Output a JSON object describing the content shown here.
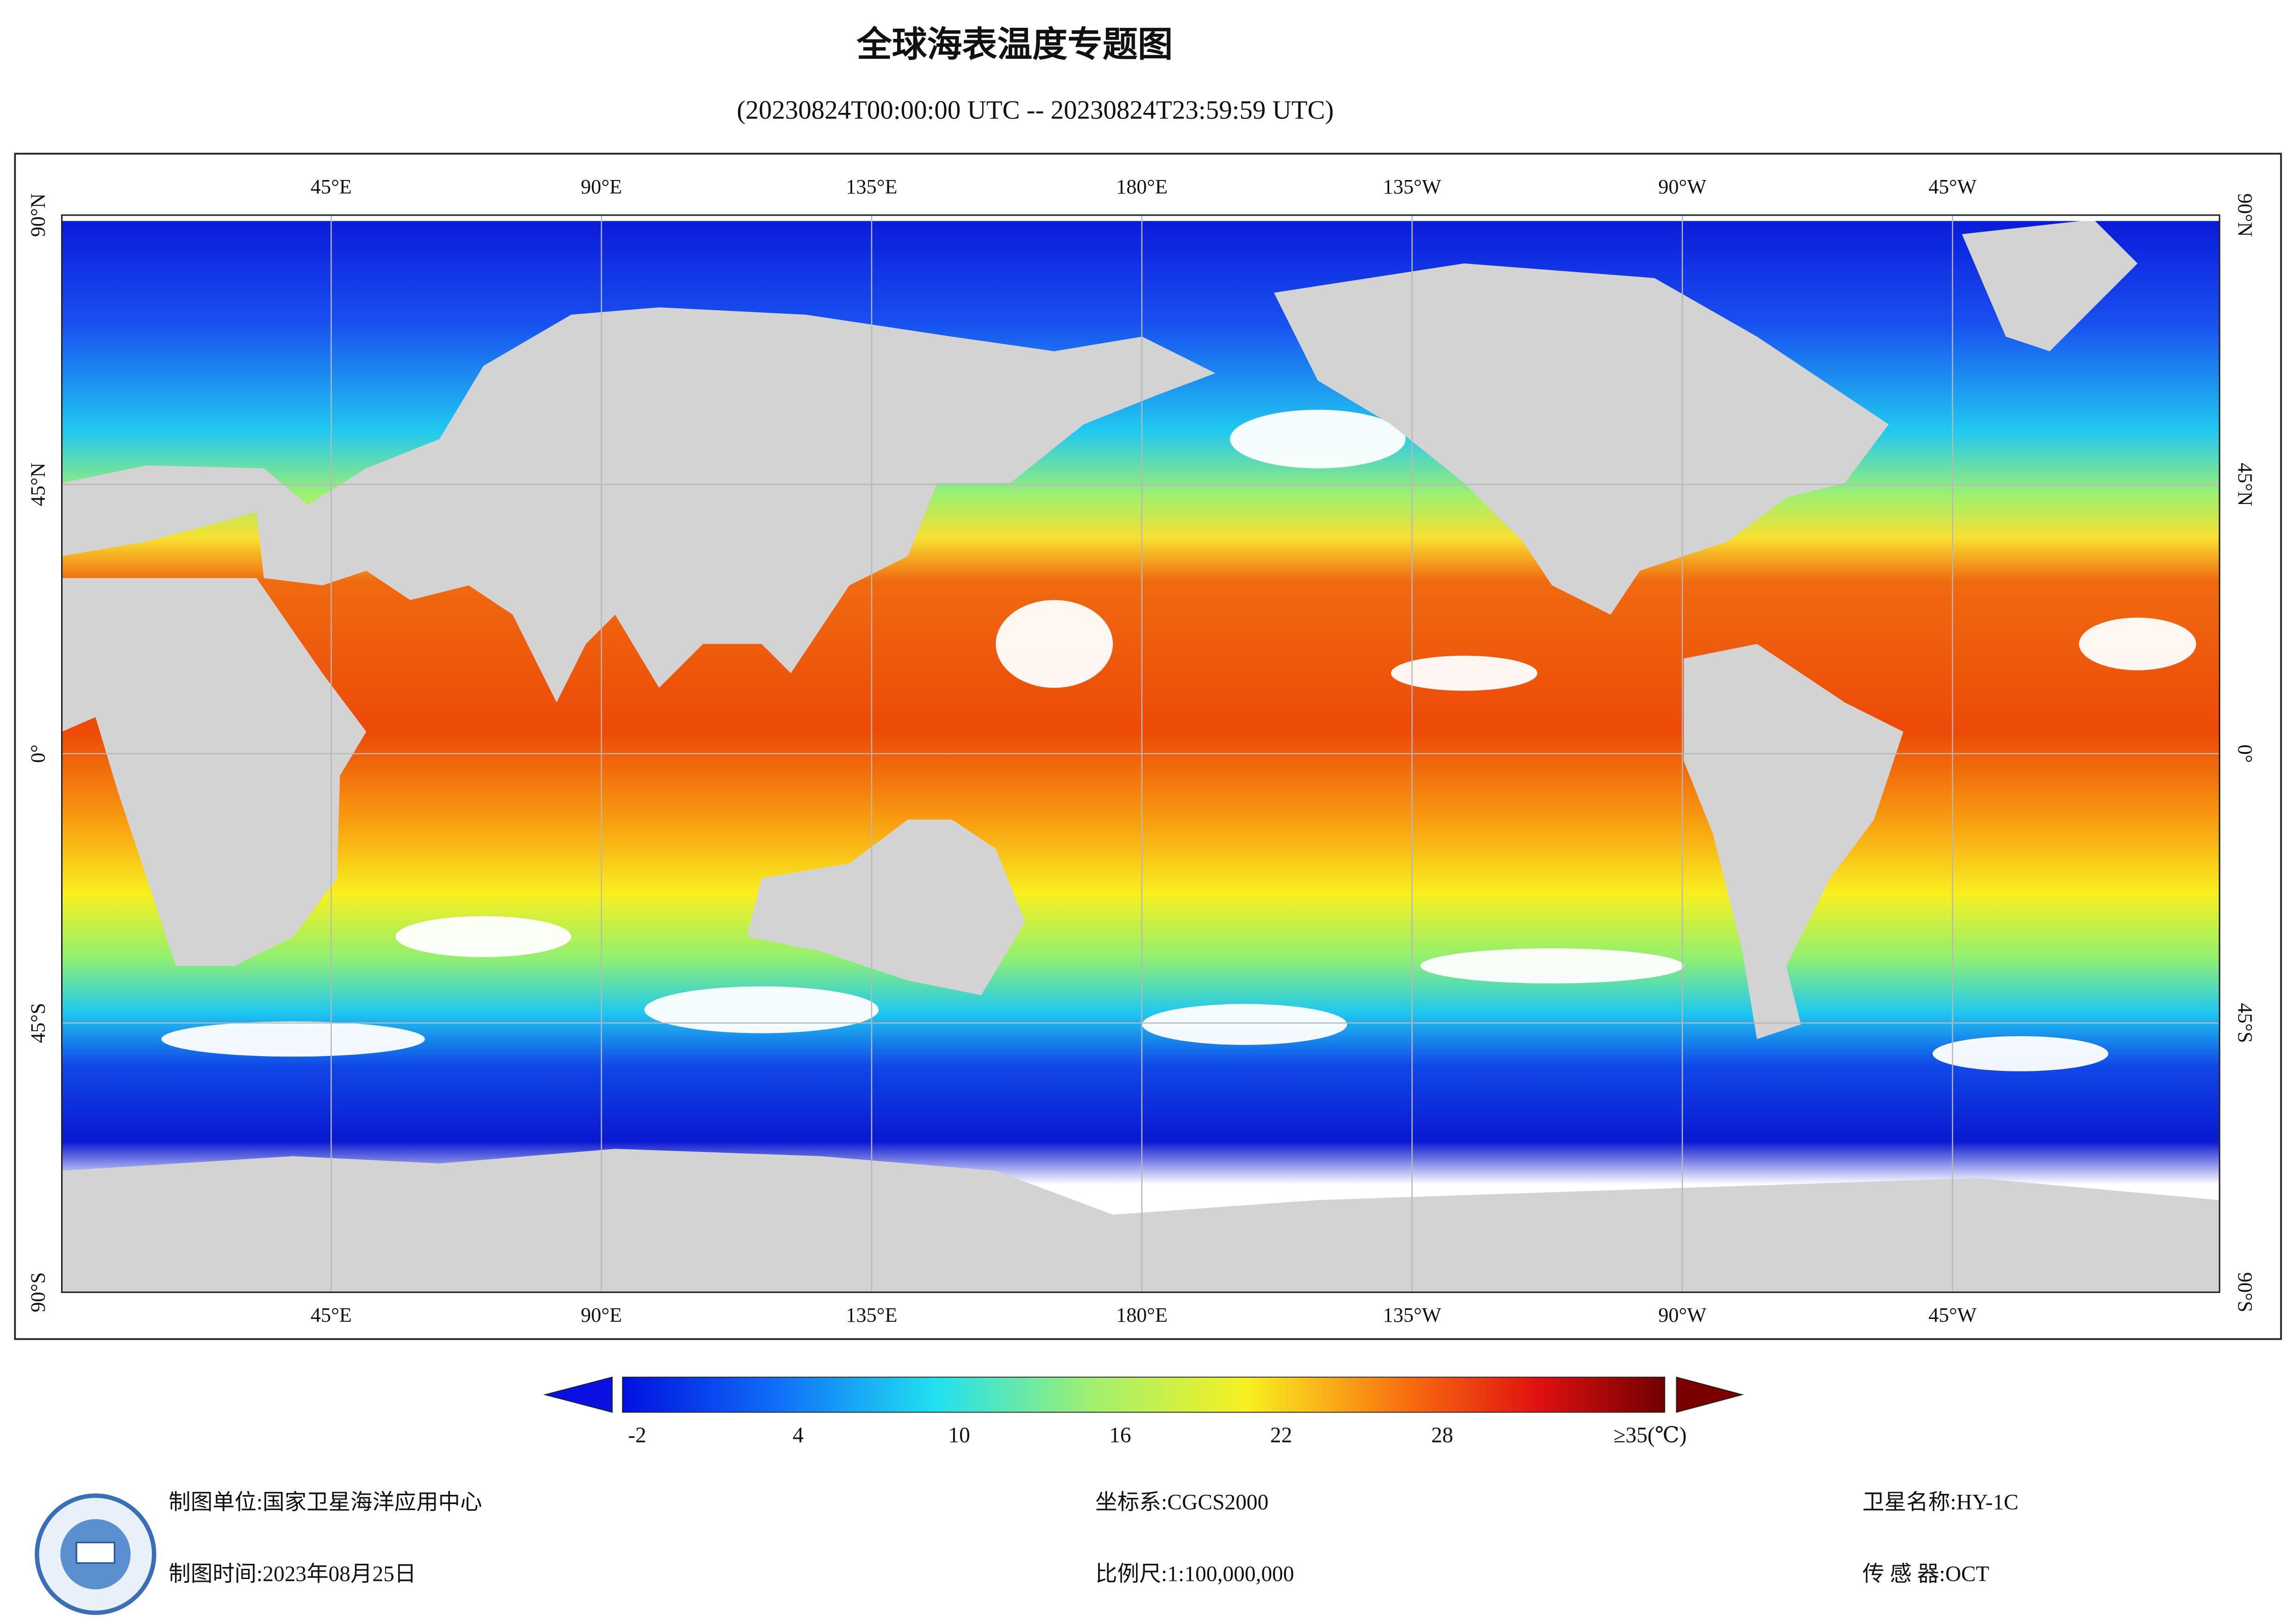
{
  "title": "全球海表温度专题图",
  "subtitle": "(20230824T00:00:00 UTC -- 20230824T23:59:59 UTC)",
  "map": {
    "lon_labels": [
      "45°E",
      "90°E",
      "135°E",
      "180°E",
      "135°W",
      "90°W",
      "45°W"
    ],
    "lat_labels": [
      "90°N",
      "45°N",
      "0°",
      "45°S",
      "90°S"
    ]
  },
  "colorbar": {
    "labels": [
      "-2",
      "4",
      "10",
      "16",
      "22",
      "28"
    ],
    "max_label": "≥35(℃)"
  },
  "footer": {
    "unit": "制图单位:国家卫星海洋应用中心",
    "date": "制图时间:2023年08月25日",
    "crs": "坐标系:CGCS2000",
    "scale": "比例尺:1:100,000,000",
    "satellite": "卫星名称:HY-1C",
    "sensor": "传 感 器:OCT"
  }
}
